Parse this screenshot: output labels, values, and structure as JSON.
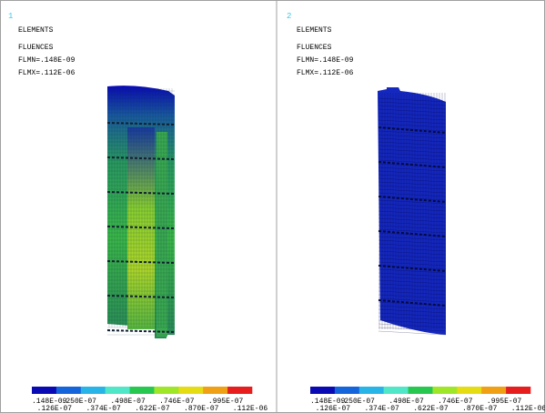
{
  "panels": [
    {
      "number": "1",
      "lines": [
        "ELEMENTS",
        "FLUENCES",
        "FLMN=.148E-09",
        "FLMX=.112E-06"
      ],
      "legend": {
        "colors": [
          "#0a0ab4",
          "#1464dc",
          "#28b4e6",
          "#50e6c8",
          "#28c850",
          "#a0e628",
          "#e6dc14",
          "#f0a014",
          "#e61e1e"
        ],
        "labels": [
          ".148E-09",
          ".126E-07",
          ".250E-07",
          ".374E-07",
          ".498E-07",
          ".622E-07",
          ".746E-07",
          ".870E-07",
          ".995E-07",
          ".112E-06"
        ]
      }
    },
    {
      "number": "2",
      "lines": [
        "ELEMENTS",
        "FLUENCES",
        "FLMN=.148E-09",
        "FLMX=.112E-06"
      ],
      "legend": {
        "colors": [
          "#0a0ab4",
          "#1464dc",
          "#28b4e6",
          "#50e6c8",
          "#28c850",
          "#a0e628",
          "#e6dc14",
          "#f0a014",
          "#e61e1e"
        ],
        "labels": [
          ".148E-09",
          ".126E-07",
          ".250E-07",
          ".374E-07",
          ".498E-07",
          ".622E-07",
          ".746E-07",
          ".870E-07",
          ".995E-07",
          ".112E-06"
        ]
      }
    }
  ]
}
